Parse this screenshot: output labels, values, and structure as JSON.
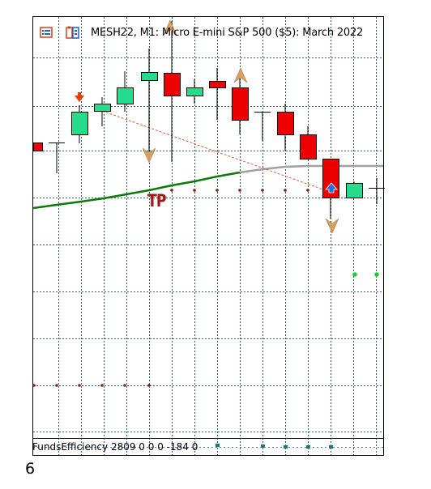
{
  "header": {
    "title": "MESH22, M1:  Micro E-mini S&P 500 ($5): March 2022",
    "icons": [
      "chart-properties-icon",
      "template-icon"
    ]
  },
  "chart": {
    "tp_label": "TP",
    "colors": {
      "bull": "#25dc8c",
      "bear": "#ee0000",
      "grid": "#2e5c5c",
      "ma_green": "#0a7a0a",
      "ma_gray": "#a0a0a0",
      "tp_dots": "#8b1a1a",
      "signal_dots": "#22cc33",
      "arrow": "#d8a060",
      "buy_signal": "#1e6fd8",
      "sell_signal": "#e04010"
    }
  },
  "indicator": {
    "label": "FundsEfficiency 2809 0 0 0 -184 0"
  },
  "bottom_number": "6"
}
